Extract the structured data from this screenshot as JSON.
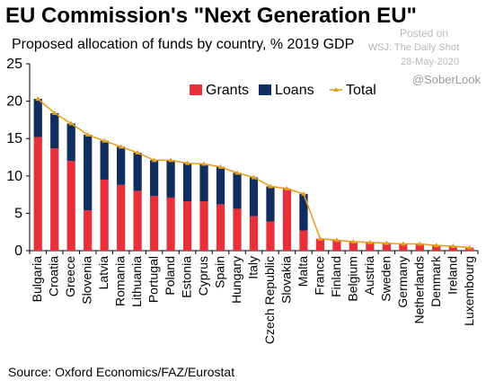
{
  "header": {
    "title": "EU Commission's \"Next Generation EU\"",
    "subtitle": "Proposed allocation of funds by country, % 2019 GDP"
  },
  "watermark": {
    "posted": "Posted on",
    "site": "WSJ: The Daily Shot",
    "date": "28-May-2020",
    "handle": "@SoberLook"
  },
  "footer": {
    "source": "Source: Oxford Economics/FAZ/Eurostat"
  },
  "chart_data": {
    "type": "bar",
    "stacked": true,
    "categories": [
      "Bulgaria",
      "Croatia",
      "Greece",
      "Slovenia",
      "Latvia",
      "Romania",
      "Lithuania",
      "Portugal",
      "Poland",
      "Estonia",
      "Cyprus",
      "Spain",
      "Hungary",
      "Italy",
      "Czech Republic",
      "Slovakia",
      "Malta",
      "France",
      "Finland",
      "Belgium",
      "Austria",
      "Sweden",
      "Germany",
      "Netherlands",
      "Denmark",
      "Ireland",
      "Luxembourg"
    ],
    "series": [
      {
        "name": "Grants",
        "color": "#e8303a",
        "values": [
          15.2,
          13.7,
          12.0,
          5.4,
          9.5,
          8.8,
          8.0,
          7.3,
          7.1,
          6.6,
          6.6,
          6.2,
          5.6,
          4.6,
          3.9,
          8.3,
          2.7,
          1.6,
          1.4,
          1.2,
          1.1,
          1.0,
          0.9,
          0.9,
          0.7,
          0.6,
          0.4
        ]
      },
      {
        "name": "Loans",
        "color": "#0f2d5e",
        "values": [
          5.1,
          4.7,
          5.0,
          10.1,
          5.2,
          5.1,
          5.1,
          4.8,
          5.0,
          5.1,
          5.0,
          5.0,
          4.8,
          5.2,
          4.7,
          0.0,
          4.9,
          0.0,
          0.0,
          0.0,
          0.0,
          0.0,
          0.0,
          0.0,
          0.0,
          0.0,
          0.0
        ]
      },
      {
        "name": "Total",
        "type": "line",
        "color": "#e6a020",
        "values": [
          20.3,
          18.4,
          17.0,
          15.5,
          14.7,
          13.9,
          13.1,
          12.1,
          12.1,
          11.7,
          11.6,
          11.2,
          10.4,
          9.8,
          8.6,
          8.3,
          7.6,
          1.6,
          1.4,
          1.2,
          1.1,
          1.0,
          0.9,
          0.9,
          0.7,
          0.6,
          0.4
        ]
      }
    ],
    "ylim": [
      0,
      25
    ],
    "yticks": [
      0,
      5,
      10,
      15,
      20,
      25
    ],
    "legend_position": "top-right",
    "grid": false
  }
}
